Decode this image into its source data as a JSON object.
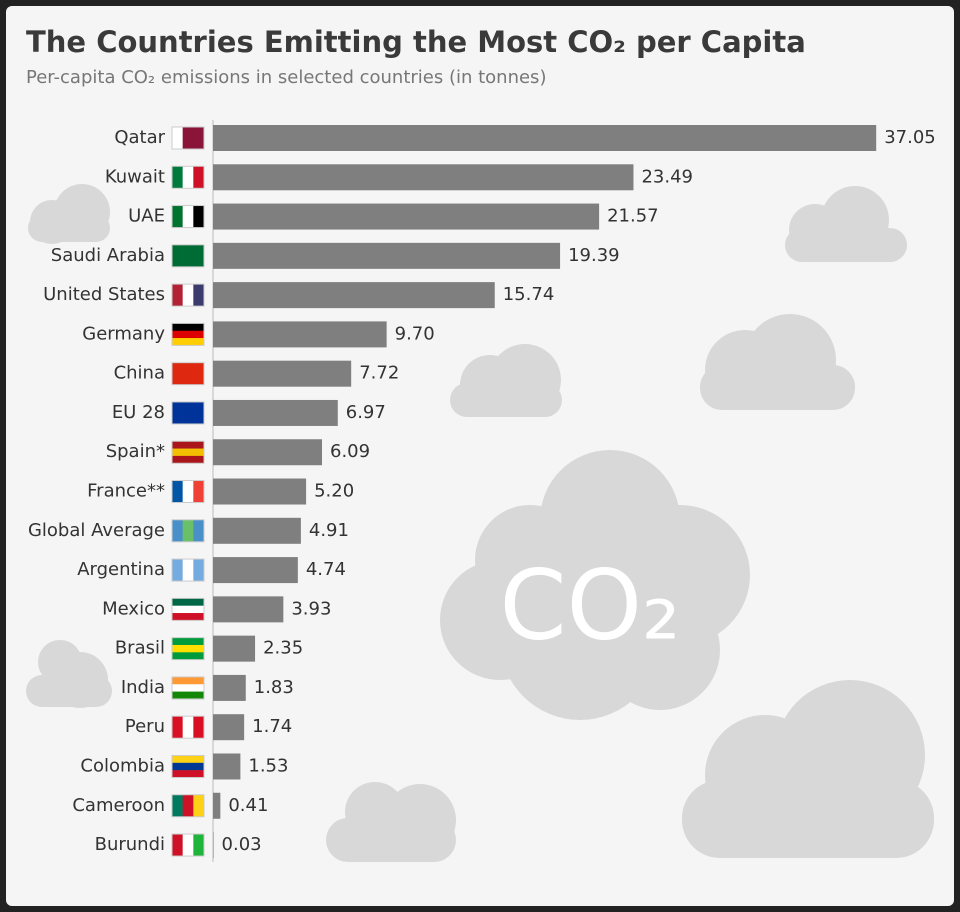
{
  "chart_data": {
    "type": "barh",
    "title": "The Countries Emitting the Most CO₂ per Capita",
    "subtitle": "Per-capita CO₂ emissions in selected countries (in tonnes)",
    "annotations": [
      "CO₂"
    ],
    "categories": [
      "Qatar",
      "Kuwait",
      "UAE",
      "Saudi Arabia",
      "United States",
      "Germany",
      "China",
      "EU 28",
      "Spain*",
      "France**",
      "Global Average",
      "Argentina",
      "Mexico",
      "Brasil",
      "India",
      "Peru",
      "Colombia",
      "Cameroon",
      "Burundi"
    ],
    "values": [
      37.05,
      23.49,
      21.57,
      19.39,
      15.74,
      9.7,
      7.72,
      6.97,
      6.09,
      5.2,
      4.91,
      4.74,
      3.93,
      2.35,
      1.83,
      1.74,
      1.53,
      0.41,
      0.03
    ],
    "value_labels": [
      "37.05",
      "23.49",
      "21.57",
      "19.39",
      "15.74",
      "9.70",
      "7.72",
      "6.97",
      "6.09",
      "5.20",
      "4.91",
      "4.74",
      "3.93",
      "2.35",
      "1.83",
      "1.74",
      "1.53",
      "0.41",
      "0.03"
    ],
    "color": "#7f7f7f",
    "xlim": [
      0,
      40
    ]
  }
}
